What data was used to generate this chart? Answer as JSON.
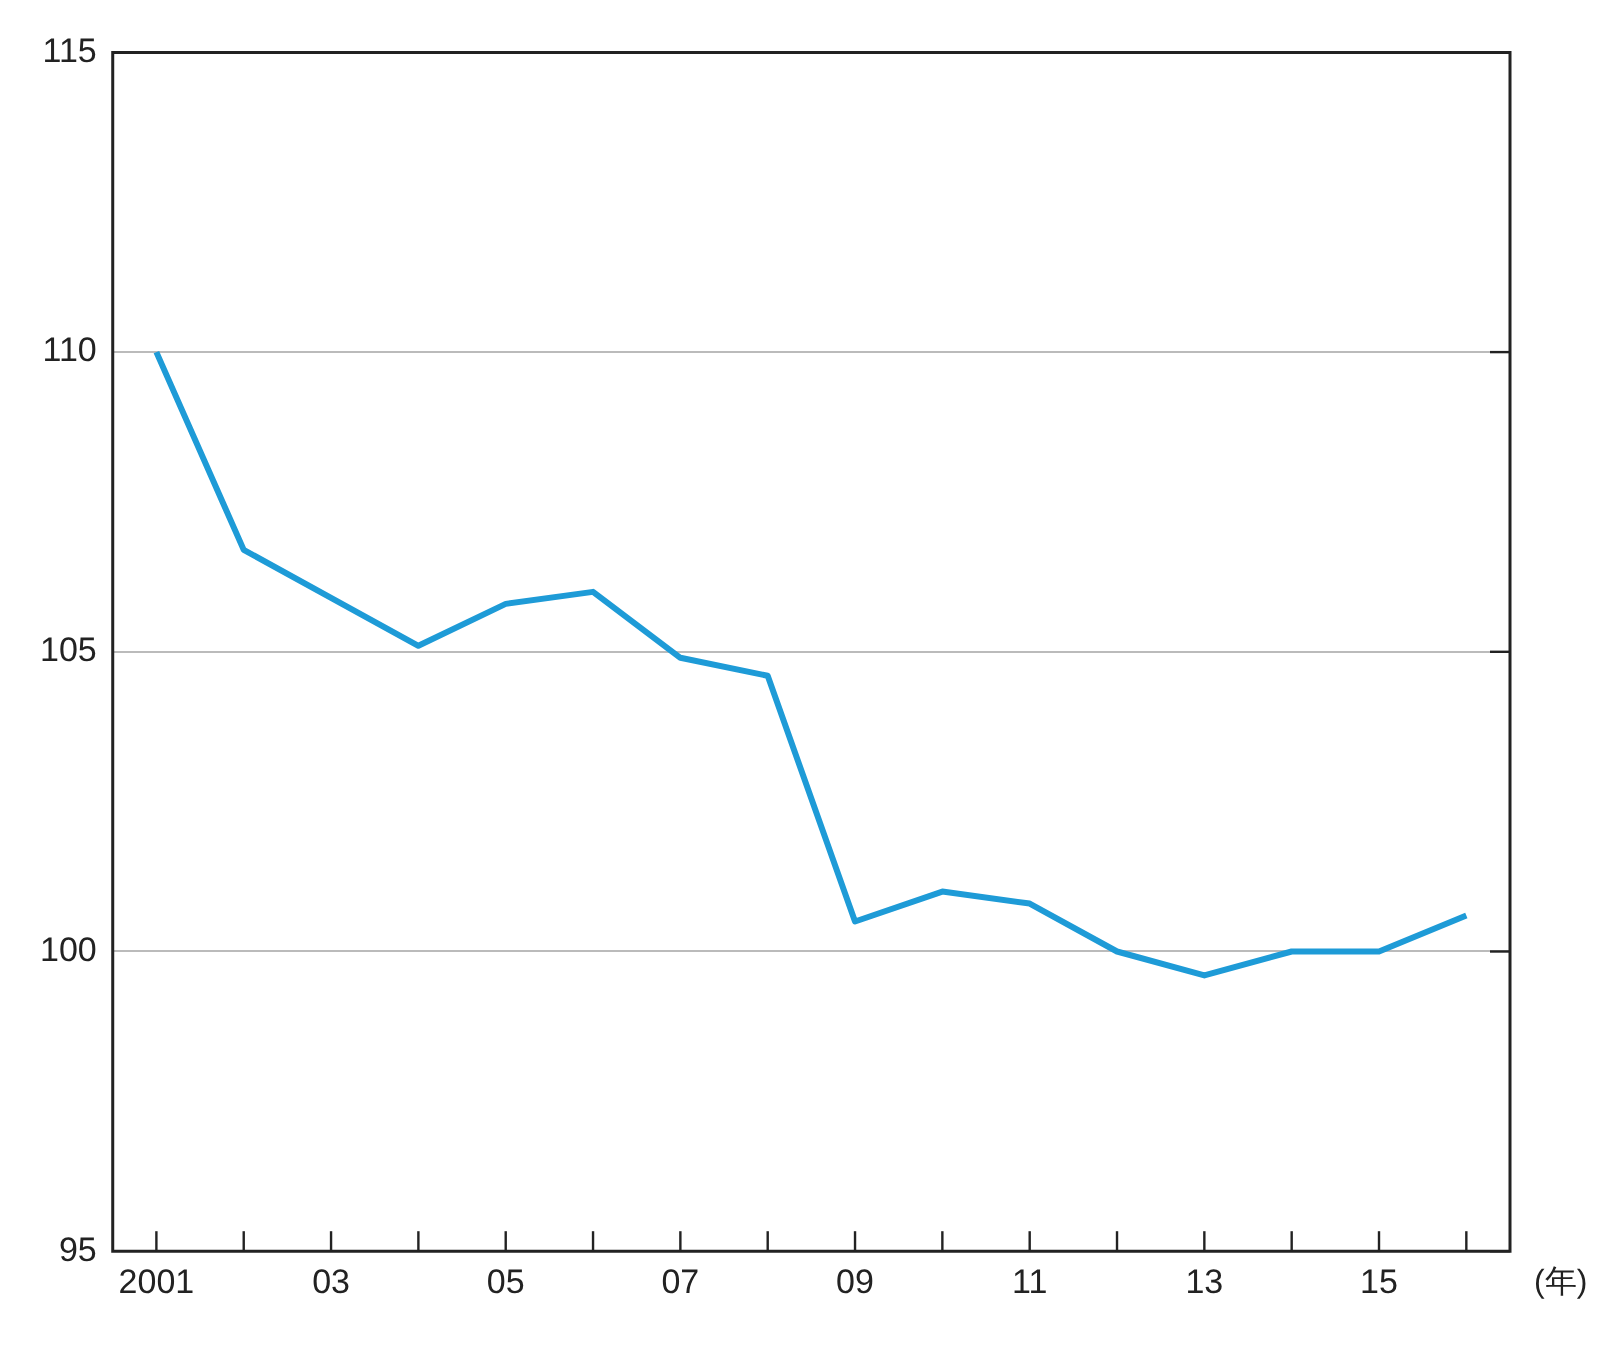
{
  "chart_data": {
    "type": "line",
    "xlabel": "(年)",
    "categories": [
      "2001",
      null,
      "03",
      null,
      "05",
      null,
      "07",
      null,
      "09",
      null,
      "11",
      null,
      "13",
      null,
      "15",
      null
    ],
    "series": [
      {
        "color": "#1e9bd7",
        "values": [
          110.0,
          106.7,
          105.9,
          105.1,
          105.8,
          106.0,
          104.9,
          104.6,
          100.5,
          101.0,
          100.8,
          100.0,
          99.6,
          100.0,
          100.0,
          100.6
        ]
      }
    ],
    "ylim": [
      95,
      115
    ],
    "yticks": [
      95,
      100,
      105,
      110,
      115
    ],
    "grid": "y",
    "legend": false,
    "marker": "none",
    "line_style": "solid"
  }
}
